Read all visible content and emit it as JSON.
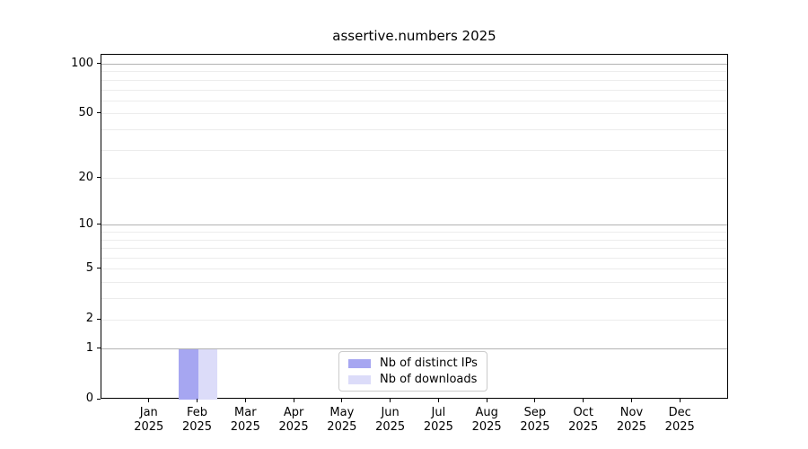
{
  "chart_data": {
    "type": "bar",
    "title": "assertive.numbers 2025",
    "x": {
      "months": [
        "Jan",
        "Feb",
        "Mar",
        "Apr",
        "May",
        "Jun",
        "Jul",
        "Aug",
        "Sep",
        "Oct",
        "Nov",
        "Dec"
      ],
      "year": "2025"
    },
    "series": [
      {
        "name": "Nb of distinct IPs",
        "color": "#a6a6f1",
        "values": [
          0,
          1,
          0,
          0,
          0,
          0,
          0,
          0,
          0,
          0,
          0,
          0
        ]
      },
      {
        "name": "Nb of downloads",
        "color": "#dcdcf9",
        "values": [
          0,
          1,
          0,
          0,
          0,
          0,
          0,
          0,
          0,
          0,
          0,
          0
        ]
      }
    ],
    "yscale": "log1p",
    "ylim": [
      0,
      114
    ],
    "y_tick_labels": [
      0,
      1,
      2,
      5,
      10,
      20,
      50,
      100
    ],
    "y_decade_gridlines": [
      1,
      10,
      100
    ],
    "y_minor_gridlines": [
      2,
      3,
      4,
      5,
      6,
      7,
      8,
      9,
      20,
      30,
      40,
      50,
      60,
      70,
      80,
      90
    ],
    "grid": true,
    "legend": {
      "position": "lower center",
      "entries": [
        "Nb of distinct IPs",
        "Nb of downloads"
      ]
    },
    "colors": {
      "grid_minor": "#ececec",
      "grid_decade": "#b3b3b3",
      "axis": "#000000",
      "background": "#ffffff",
      "text": "#000000"
    }
  }
}
